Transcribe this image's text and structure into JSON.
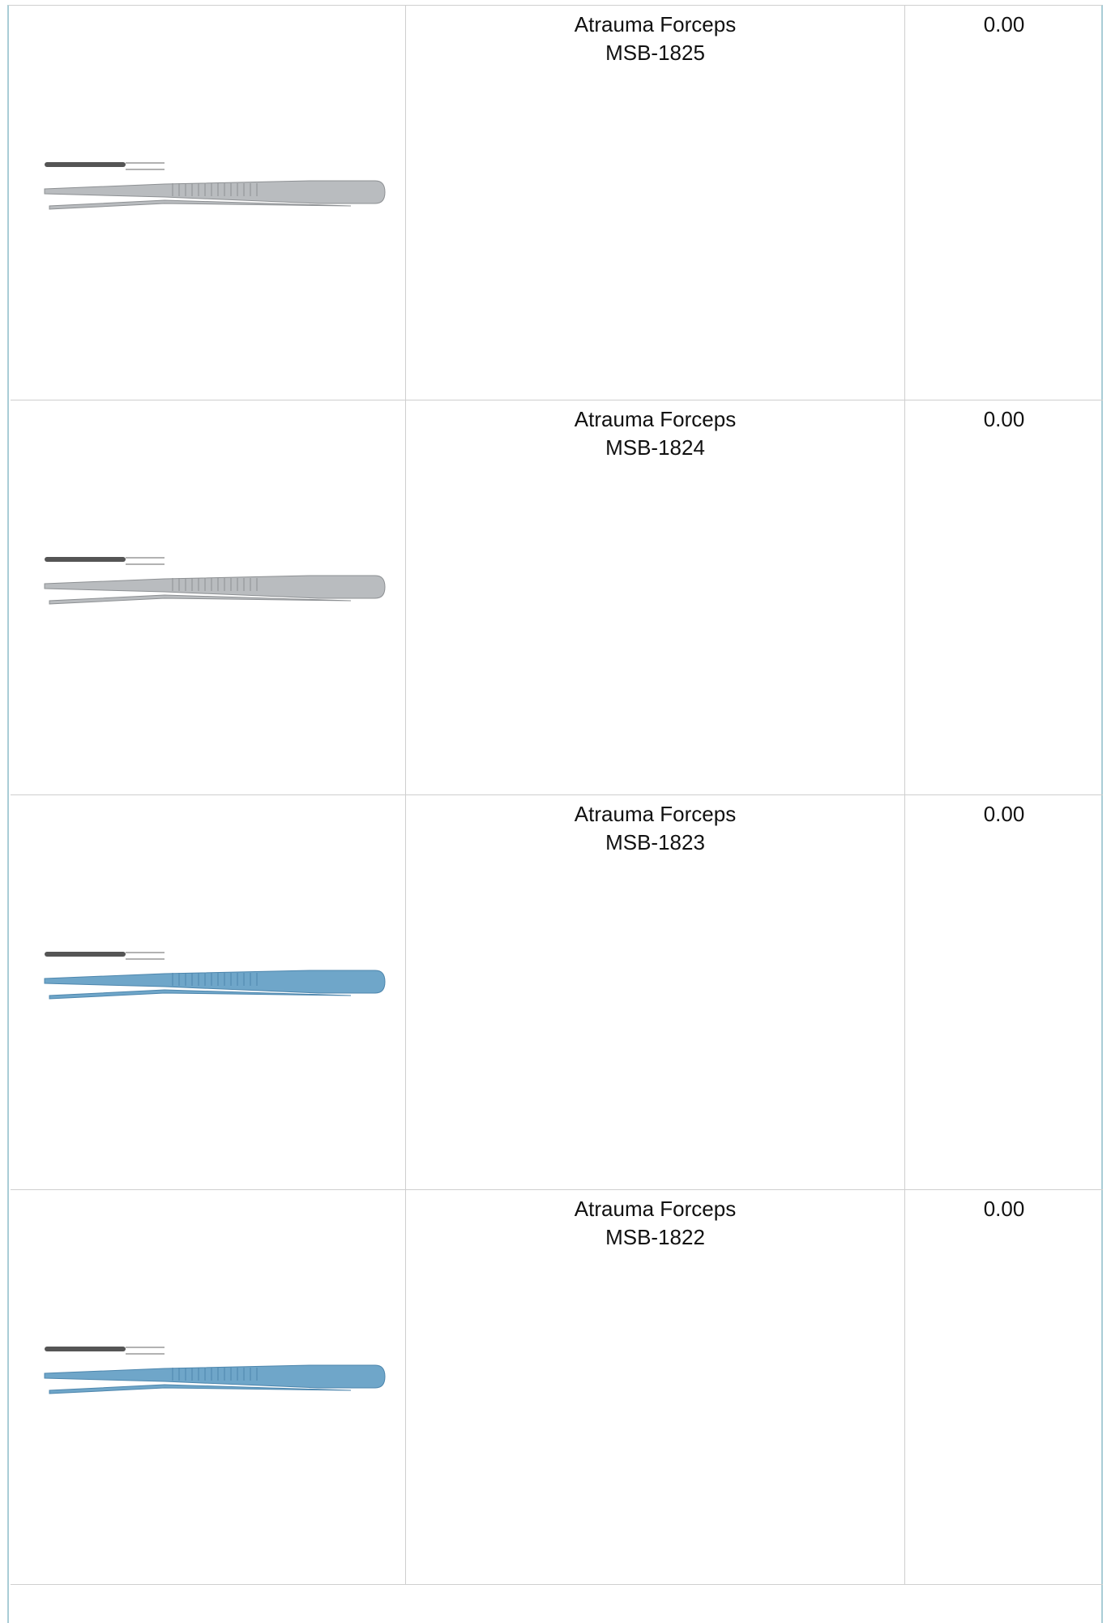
{
  "table": {
    "rows": [
      {
        "name": "Atrauma Forceps",
        "code": "MSB-1825",
        "price": "0.00"
      },
      {
        "name": "Atrauma Forceps",
        "code": "MSB-1824",
        "price": "0.00"
      },
      {
        "name": "Atrauma Forceps",
        "code": "MSB-1823",
        "price": "0.00"
      },
      {
        "name": "Atrauma Forceps",
        "code": "MSB-1822",
        "price": "0.00"
      }
    ]
  }
}
